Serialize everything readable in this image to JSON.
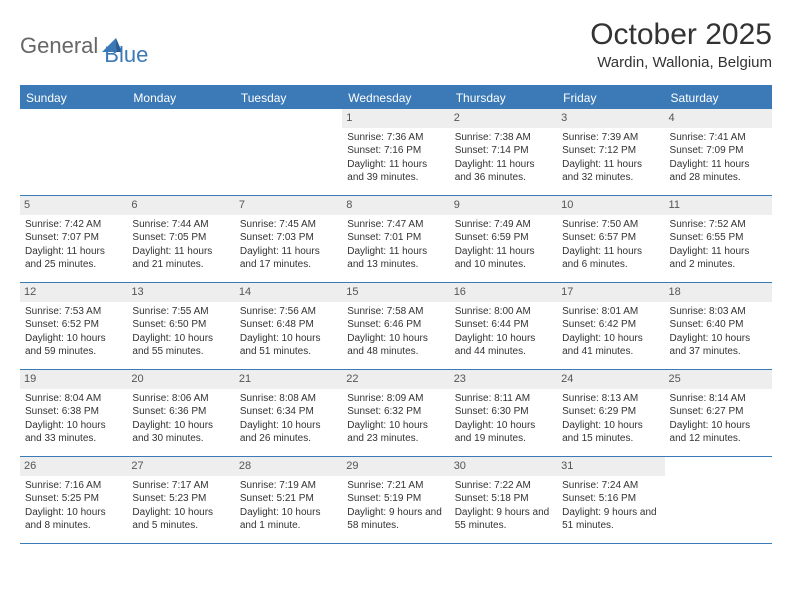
{
  "logo": {
    "general": "General",
    "blue": "Blue"
  },
  "title": "October 2025",
  "location": "Wardin, Wallonia, Belgium",
  "colors": {
    "brand": "#3b79b7",
    "header_bg": "#3b79b7",
    "header_text": "#ffffff",
    "daynum_bg": "#eeeeee",
    "text": "#333333",
    "logo_gray": "#676767"
  },
  "day_names": [
    "Sunday",
    "Monday",
    "Tuesday",
    "Wednesday",
    "Thursday",
    "Friday",
    "Saturday"
  ],
  "weeks": [
    [
      {
        "empty": true
      },
      {
        "empty": true
      },
      {
        "empty": true
      },
      {
        "day": "1",
        "sunrise": "Sunrise: 7:36 AM",
        "sunset": "Sunset: 7:16 PM",
        "daylight": "Daylight: 11 hours and 39 minutes."
      },
      {
        "day": "2",
        "sunrise": "Sunrise: 7:38 AM",
        "sunset": "Sunset: 7:14 PM",
        "daylight": "Daylight: 11 hours and 36 minutes."
      },
      {
        "day": "3",
        "sunrise": "Sunrise: 7:39 AM",
        "sunset": "Sunset: 7:12 PM",
        "daylight": "Daylight: 11 hours and 32 minutes."
      },
      {
        "day": "4",
        "sunrise": "Sunrise: 7:41 AM",
        "sunset": "Sunset: 7:09 PM",
        "daylight": "Daylight: 11 hours and 28 minutes."
      }
    ],
    [
      {
        "day": "5",
        "sunrise": "Sunrise: 7:42 AM",
        "sunset": "Sunset: 7:07 PM",
        "daylight": "Daylight: 11 hours and 25 minutes."
      },
      {
        "day": "6",
        "sunrise": "Sunrise: 7:44 AM",
        "sunset": "Sunset: 7:05 PM",
        "daylight": "Daylight: 11 hours and 21 minutes."
      },
      {
        "day": "7",
        "sunrise": "Sunrise: 7:45 AM",
        "sunset": "Sunset: 7:03 PM",
        "daylight": "Daylight: 11 hours and 17 minutes."
      },
      {
        "day": "8",
        "sunrise": "Sunrise: 7:47 AM",
        "sunset": "Sunset: 7:01 PM",
        "daylight": "Daylight: 11 hours and 13 minutes."
      },
      {
        "day": "9",
        "sunrise": "Sunrise: 7:49 AM",
        "sunset": "Sunset: 6:59 PM",
        "daylight": "Daylight: 11 hours and 10 minutes."
      },
      {
        "day": "10",
        "sunrise": "Sunrise: 7:50 AM",
        "sunset": "Sunset: 6:57 PM",
        "daylight": "Daylight: 11 hours and 6 minutes."
      },
      {
        "day": "11",
        "sunrise": "Sunrise: 7:52 AM",
        "sunset": "Sunset: 6:55 PM",
        "daylight": "Daylight: 11 hours and 2 minutes."
      }
    ],
    [
      {
        "day": "12",
        "sunrise": "Sunrise: 7:53 AM",
        "sunset": "Sunset: 6:52 PM",
        "daylight": "Daylight: 10 hours and 59 minutes."
      },
      {
        "day": "13",
        "sunrise": "Sunrise: 7:55 AM",
        "sunset": "Sunset: 6:50 PM",
        "daylight": "Daylight: 10 hours and 55 minutes."
      },
      {
        "day": "14",
        "sunrise": "Sunrise: 7:56 AM",
        "sunset": "Sunset: 6:48 PM",
        "daylight": "Daylight: 10 hours and 51 minutes."
      },
      {
        "day": "15",
        "sunrise": "Sunrise: 7:58 AM",
        "sunset": "Sunset: 6:46 PM",
        "daylight": "Daylight: 10 hours and 48 minutes."
      },
      {
        "day": "16",
        "sunrise": "Sunrise: 8:00 AM",
        "sunset": "Sunset: 6:44 PM",
        "daylight": "Daylight: 10 hours and 44 minutes."
      },
      {
        "day": "17",
        "sunrise": "Sunrise: 8:01 AM",
        "sunset": "Sunset: 6:42 PM",
        "daylight": "Daylight: 10 hours and 41 minutes."
      },
      {
        "day": "18",
        "sunrise": "Sunrise: 8:03 AM",
        "sunset": "Sunset: 6:40 PM",
        "daylight": "Daylight: 10 hours and 37 minutes."
      }
    ],
    [
      {
        "day": "19",
        "sunrise": "Sunrise: 8:04 AM",
        "sunset": "Sunset: 6:38 PM",
        "daylight": "Daylight: 10 hours and 33 minutes."
      },
      {
        "day": "20",
        "sunrise": "Sunrise: 8:06 AM",
        "sunset": "Sunset: 6:36 PM",
        "daylight": "Daylight: 10 hours and 30 minutes."
      },
      {
        "day": "21",
        "sunrise": "Sunrise: 8:08 AM",
        "sunset": "Sunset: 6:34 PM",
        "daylight": "Daylight: 10 hours and 26 minutes."
      },
      {
        "day": "22",
        "sunrise": "Sunrise: 8:09 AM",
        "sunset": "Sunset: 6:32 PM",
        "daylight": "Daylight: 10 hours and 23 minutes."
      },
      {
        "day": "23",
        "sunrise": "Sunrise: 8:11 AM",
        "sunset": "Sunset: 6:30 PM",
        "daylight": "Daylight: 10 hours and 19 minutes."
      },
      {
        "day": "24",
        "sunrise": "Sunrise: 8:13 AM",
        "sunset": "Sunset: 6:29 PM",
        "daylight": "Daylight: 10 hours and 15 minutes."
      },
      {
        "day": "25",
        "sunrise": "Sunrise: 8:14 AM",
        "sunset": "Sunset: 6:27 PM",
        "daylight": "Daylight: 10 hours and 12 minutes."
      }
    ],
    [
      {
        "day": "26",
        "sunrise": "Sunrise: 7:16 AM",
        "sunset": "Sunset: 5:25 PM",
        "daylight": "Daylight: 10 hours and 8 minutes."
      },
      {
        "day": "27",
        "sunrise": "Sunrise: 7:17 AM",
        "sunset": "Sunset: 5:23 PM",
        "daylight": "Daylight: 10 hours and 5 minutes."
      },
      {
        "day": "28",
        "sunrise": "Sunrise: 7:19 AM",
        "sunset": "Sunset: 5:21 PM",
        "daylight": "Daylight: 10 hours and 1 minute."
      },
      {
        "day": "29",
        "sunrise": "Sunrise: 7:21 AM",
        "sunset": "Sunset: 5:19 PM",
        "daylight": "Daylight: 9 hours and 58 minutes."
      },
      {
        "day": "30",
        "sunrise": "Sunrise: 7:22 AM",
        "sunset": "Sunset: 5:18 PM",
        "daylight": "Daylight: 9 hours and 55 minutes."
      },
      {
        "day": "31",
        "sunrise": "Sunrise: 7:24 AM",
        "sunset": "Sunset: 5:16 PM",
        "daylight": "Daylight: 9 hours and 51 minutes."
      },
      {
        "empty": true
      }
    ]
  ]
}
